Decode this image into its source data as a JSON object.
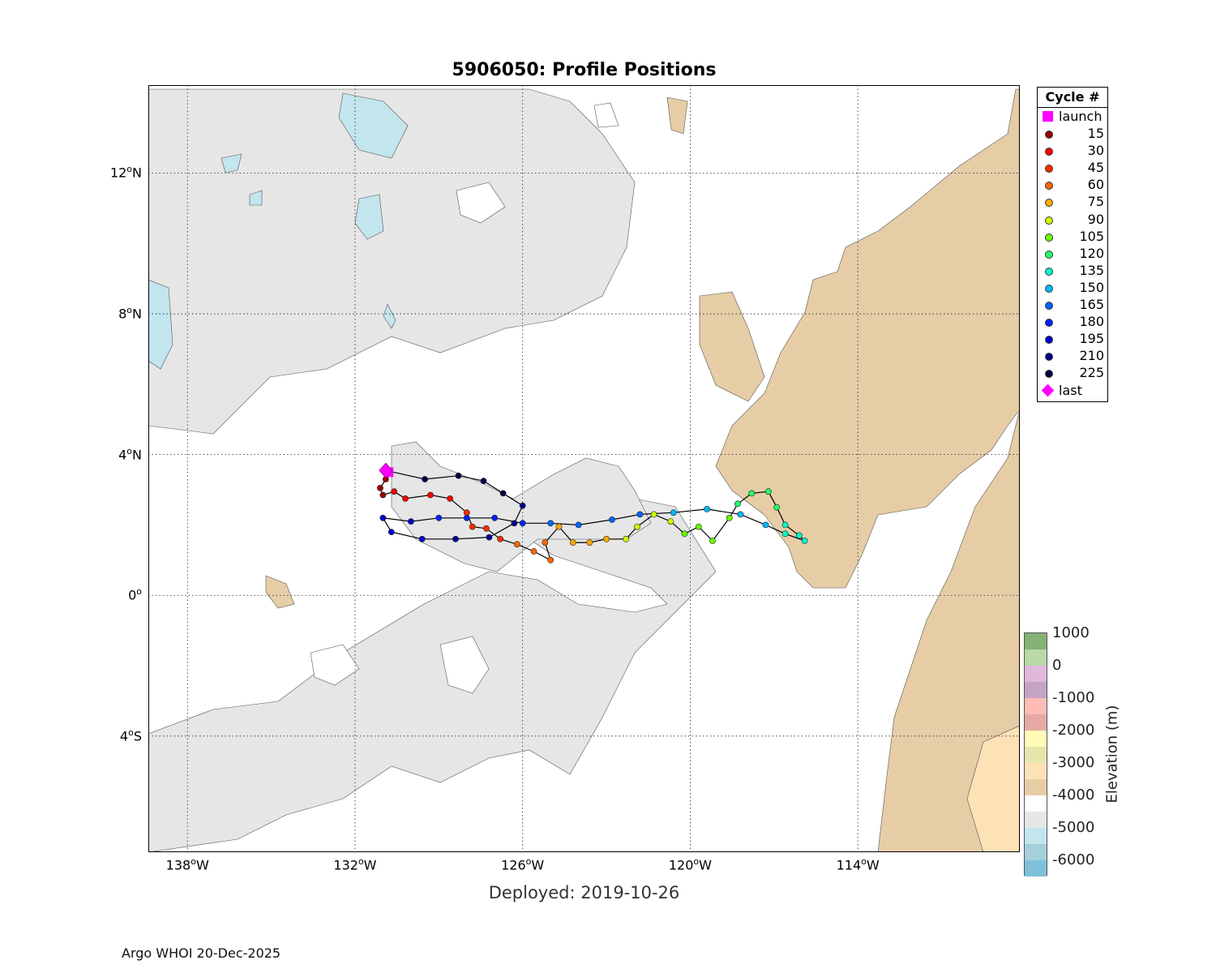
{
  "title": "5906050: Profile Positions",
  "deployed": "Deployed: 2019-10-26",
  "footer": "Argo WHOI 20-Dec-2025",
  "axes": {
    "lon_range": [
      -139.4,
      -108.2
    ],
    "lat_range": [
      -7.3,
      14.5
    ],
    "x_ticks": [
      {
        "value": -138,
        "deg": "138",
        "hemi": "W"
      },
      {
        "value": -132,
        "deg": "132",
        "hemi": "W"
      },
      {
        "value": -126,
        "deg": "126",
        "hemi": "W"
      },
      {
        "value": -120,
        "deg": "120",
        "hemi": "W"
      },
      {
        "value": -114,
        "deg": "114",
        "hemi": "W"
      }
    ],
    "y_ticks": [
      {
        "value": 12,
        "deg": "12",
        "hemi": "N"
      },
      {
        "value": 8,
        "deg": "8",
        "hemi": "N"
      },
      {
        "value": 4,
        "deg": "4",
        "hemi": "N"
      },
      {
        "value": 0,
        "deg": "0",
        "hemi": ""
      },
      {
        "value": -4,
        "deg": "4",
        "hemi": "S"
      }
    ],
    "grid": "dotted"
  },
  "legend": {
    "title": "Cycle #",
    "entries": [
      {
        "label": "launch",
        "color": "#ff00ff",
        "marker": "square"
      },
      {
        "label": "15",
        "color": "#9b0000",
        "marker": "dot"
      },
      {
        "label": "30",
        "color": "#ff0000",
        "marker": "dot"
      },
      {
        "label": "45",
        "color": "#ff2a00",
        "marker": "dot"
      },
      {
        "label": "60",
        "color": "#ff6600",
        "marker": "dot"
      },
      {
        "label": "75",
        "color": "#ffaa00",
        "marker": "dot"
      },
      {
        "label": "90",
        "color": "#ccff00",
        "marker": "dot"
      },
      {
        "label": "105",
        "color": "#66ff00",
        "marker": "dot"
      },
      {
        "label": "120",
        "color": "#22ff66",
        "marker": "dot"
      },
      {
        "label": "135",
        "color": "#00ffcc",
        "marker": "dot"
      },
      {
        "label": "150",
        "color": "#00bbff",
        "marker": "dot"
      },
      {
        "label": "165",
        "color": "#0066ff",
        "marker": "dot"
      },
      {
        "label": "180",
        "color": "#0022ff",
        "marker": "dot"
      },
      {
        "label": "195",
        "color": "#0000cc",
        "marker": "dot"
      },
      {
        "label": "210",
        "color": "#00008b",
        "marker": "dot"
      },
      {
        "label": "225",
        "color": "#000044",
        "marker": "dot"
      },
      {
        "label": "last",
        "color": "#ff00ff",
        "marker": "diamond"
      }
    ]
  },
  "colorbar": {
    "label": "Elevation (m)",
    "ticks": [
      "1000",
      "0",
      "-1000",
      "-2000",
      "-3000",
      "-4000",
      "-5000",
      "-6000"
    ],
    "colors": [
      "#84b174",
      "#b9d9a7",
      "#e1b7db",
      "#c5a3c3",
      "#fdbdb5",
      "#e6aaa3",
      "#fffcb8",
      "#e6e5ab",
      "#fde2b6",
      "#e6cda6",
      "#ffffff",
      "#e6e6e6",
      "#c3e5ee",
      "#a6cfdc",
      "#7ec0d9"
    ]
  },
  "chart_data": {
    "type": "scatter",
    "xlabel": "",
    "ylabel": "",
    "track": [
      [
        -130.8,
        3.5,
        1
      ],
      [
        -130.9,
        3.3,
        4
      ],
      [
        -131.1,
        3.05,
        8
      ],
      [
        -131.0,
        2.85,
        12
      ],
      [
        -130.6,
        2.95,
        16
      ],
      [
        -130.2,
        2.75,
        20
      ],
      [
        -129.3,
        2.85,
        24
      ],
      [
        -128.6,
        2.75,
        28
      ],
      [
        -128.0,
        2.35,
        32
      ],
      [
        -127.8,
        1.95,
        36
      ],
      [
        -127.3,
        1.9,
        40
      ],
      [
        -126.8,
        1.6,
        44
      ],
      [
        -126.2,
        1.45,
        48
      ],
      [
        -125.6,
        1.25,
        52
      ],
      [
        -125.0,
        1.0,
        56
      ],
      [
        -125.2,
        1.5,
        60
      ],
      [
        -124.7,
        1.95,
        64
      ],
      [
        -124.2,
        1.5,
        68
      ],
      [
        -123.6,
        1.5,
        72
      ],
      [
        -123.0,
        1.6,
        76
      ],
      [
        -122.3,
        1.6,
        80
      ],
      [
        -121.9,
        1.95,
        84
      ],
      [
        -121.3,
        2.3,
        88
      ],
      [
        -120.7,
        2.1,
        92
      ],
      [
        -120.2,
        1.75,
        96
      ],
      [
        -119.7,
        1.95,
        100
      ],
      [
        -119.2,
        1.55,
        104
      ],
      [
        -118.6,
        2.2,
        108
      ],
      [
        -118.3,
        2.6,
        112
      ],
      [
        -117.8,
        2.9,
        116
      ],
      [
        -117.2,
        2.95,
        120
      ],
      [
        -116.9,
        2.5,
        124
      ],
      [
        -116.6,
        2.0,
        128
      ],
      [
        -116.1,
        1.7,
        132
      ],
      [
        -115.9,
        1.55,
        136
      ],
      [
        -116.6,
        1.75,
        140
      ],
      [
        -117.3,
        2.0,
        144
      ],
      [
        -118.2,
        2.3,
        148
      ],
      [
        -119.4,
        2.45,
        152
      ],
      [
        -120.6,
        2.35,
        156
      ],
      [
        -121.8,
        2.3,
        160
      ],
      [
        -122.8,
        2.15,
        164
      ],
      [
        -124.0,
        2.0,
        168
      ],
      [
        -125.0,
        2.05,
        172
      ],
      [
        -126.0,
        2.05,
        176
      ],
      [
        -127.0,
        2.2,
        180
      ],
      [
        -128.0,
        2.2,
        184
      ],
      [
        -129.0,
        2.2,
        188
      ],
      [
        -130.0,
        2.1,
        192
      ],
      [
        -131.0,
        2.2,
        196
      ],
      [
        -130.7,
        1.8,
        200
      ],
      [
        -129.6,
        1.6,
        204
      ],
      [
        -128.4,
        1.6,
        208
      ],
      [
        -127.2,
        1.65,
        212
      ],
      [
        -126.3,
        2.05,
        216
      ],
      [
        -126.0,
        2.55,
        220
      ],
      [
        -126.7,
        2.9,
        224
      ],
      [
        -127.4,
        3.25,
        228
      ],
      [
        -128.3,
        3.4,
        232
      ],
      [
        -129.5,
        3.3,
        236
      ],
      [
        -130.9,
        3.55,
        240
      ]
    ]
  }
}
